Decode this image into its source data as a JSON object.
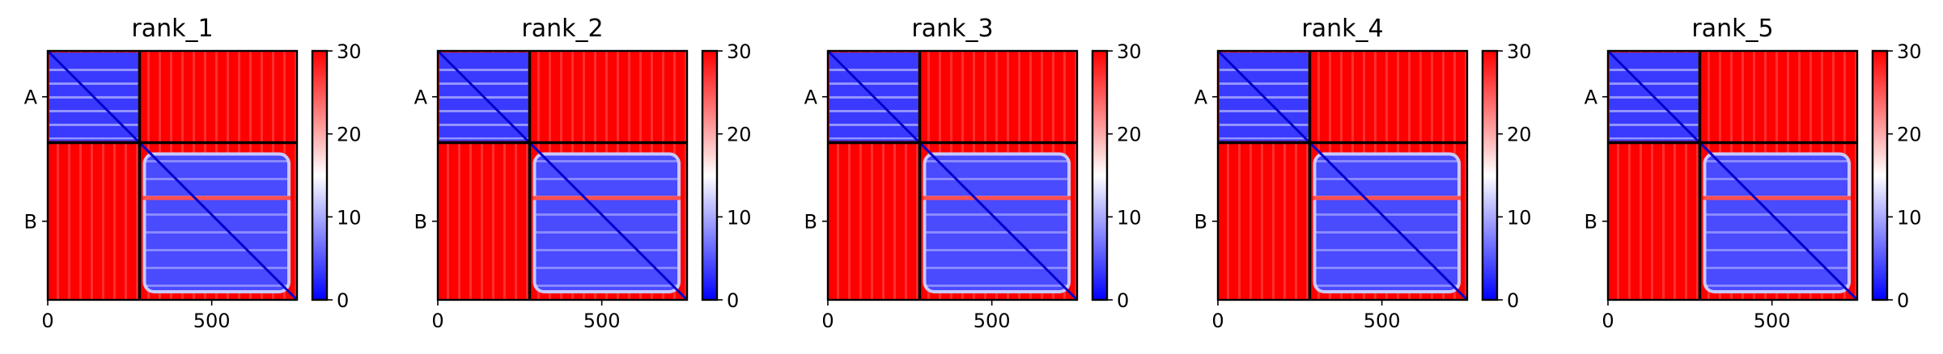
{
  "chart_data": {
    "type": "heatmap",
    "description_of_values": "Predicted aligned error matrices (residue x residue) for five model ranks of a two-chain complex; color scale 0 (blue) to 30 (red).",
    "colormap": {
      "low": "#0000ff",
      "mid": "#ffffff",
      "high": "#ff0000"
    },
    "color_range": [
      0,
      30
    ],
    "colorbar_ticks": [
      "0",
      "10",
      "20",
      "30"
    ],
    "colorbar_tick_values": [
      0,
      10,
      20,
      30
    ],
    "x_ticks": [
      "0",
      "500"
    ],
    "x_tick_values": [
      0,
      500
    ],
    "x_range": [
      0,
      760
    ],
    "y_range": [
      760,
      0
    ],
    "chains": [
      {
        "label": "A",
        "start": 0,
        "end": 280
      },
      {
        "label": "B",
        "start": 280,
        "end": 760
      }
    ],
    "block_summary": {
      "A-A": "low error (blue, ~5-12) with lighter stripes",
      "A-B": "high error (red, ~28-30)",
      "B-A": "high error (red, ~28-30)",
      "B-B": "low error (blue, ~5-12) with lighter stripes and red edges"
    },
    "panels": [
      {
        "title": "rank_1"
      },
      {
        "title": "rank_2"
      },
      {
        "title": "rank_3"
      },
      {
        "title": "rank_4"
      },
      {
        "title": "rank_5"
      }
    ]
  }
}
